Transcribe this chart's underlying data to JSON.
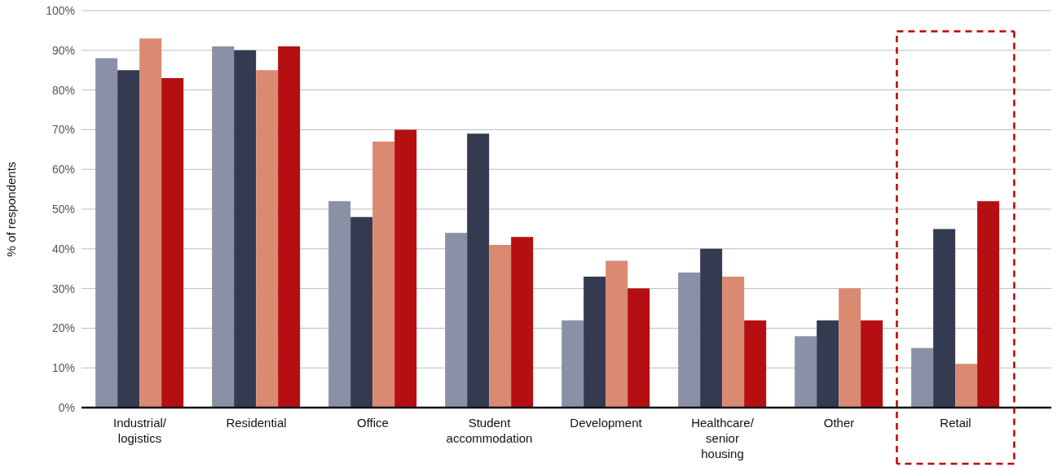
{
  "chart_data": {
    "type": "bar",
    "ylabel": "% of respondents",
    "categories": [
      "Industrial/ logistics",
      "Residential",
      "Office",
      "Student accommodation",
      "Development",
      "Healthcare/ senior housing",
      "Other",
      "Retail"
    ],
    "series": [
      {
        "color": "#8a90a6",
        "values": [
          88,
          91,
          52,
          44,
          22,
          34,
          18,
          15
        ]
      },
      {
        "color": "#343a50",
        "values": [
          85,
          90,
          48,
          69,
          33,
          40,
          22,
          45
        ]
      },
      {
        "color": "#d98a70",
        "values": [
          93,
          85,
          67,
          41,
          37,
          33,
          30,
          11
        ]
      },
      {
        "color": "#b50f12",
        "values": [
          83,
          91,
          70,
          43,
          30,
          22,
          22,
          52
        ]
      }
    ],
    "ylim": [
      0,
      100
    ],
    "yticks": [
      {
        "value": 0,
        "label": "0%"
      },
      {
        "value": 10,
        "label": "10%"
      },
      {
        "value": 20,
        "label": "20%"
      },
      {
        "value": 30,
        "label": "30%"
      },
      {
        "value": 40,
        "label": "40%"
      },
      {
        "value": 50,
        "label": "50%"
      },
      {
        "value": 60,
        "label": "60%"
      },
      {
        "value": 70,
        "label": "70%"
      },
      {
        "value": 80,
        "label": "80%"
      },
      {
        "value": 90,
        "label": "90%"
      },
      {
        "value": 100,
        "label": "100%"
      }
    ],
    "grid": "y",
    "legend": false
  }
}
